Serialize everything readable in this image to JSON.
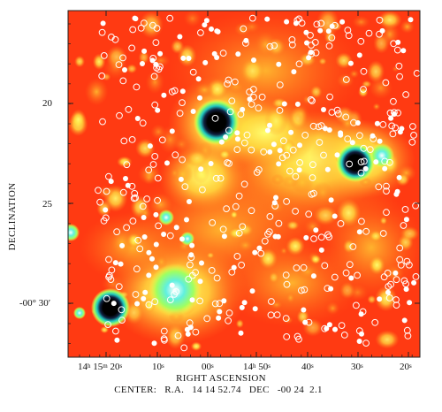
{
  "image": {
    "background_color": "#ff3a12",
    "axes": {
      "ylabel": "DECLINATION",
      "xlabel": "RIGHT ASCENSION",
      "y_ticks": [
        {
          "label": "20"
        },
        {
          "label": "25"
        },
        {
          "label": "-00° 30′"
        }
      ],
      "x_ticks": [
        {
          "label": "14h 15m 20s"
        },
        {
          "label": "10s"
        },
        {
          "label": "00s"
        },
        {
          "label": "14h 50s"
        },
        {
          "label": "40s"
        },
        {
          "label": "30s"
        },
        {
          "label": "20s"
        }
      ]
    },
    "center": {
      "prefix": "CENTER:",
      "ra_label": "R.A.",
      "ra_value": "14 14 52.74",
      "dec_label": "DEC",
      "dec_value": "-00 24  2.1"
    },
    "colors": {
      "background": "#ff3a12",
      "hot": "#ffff40",
      "warm": "#ffa020",
      "core_cyan": "#40e0d0",
      "core_black": "#000000",
      "marker": "#ffffff"
    }
  }
}
